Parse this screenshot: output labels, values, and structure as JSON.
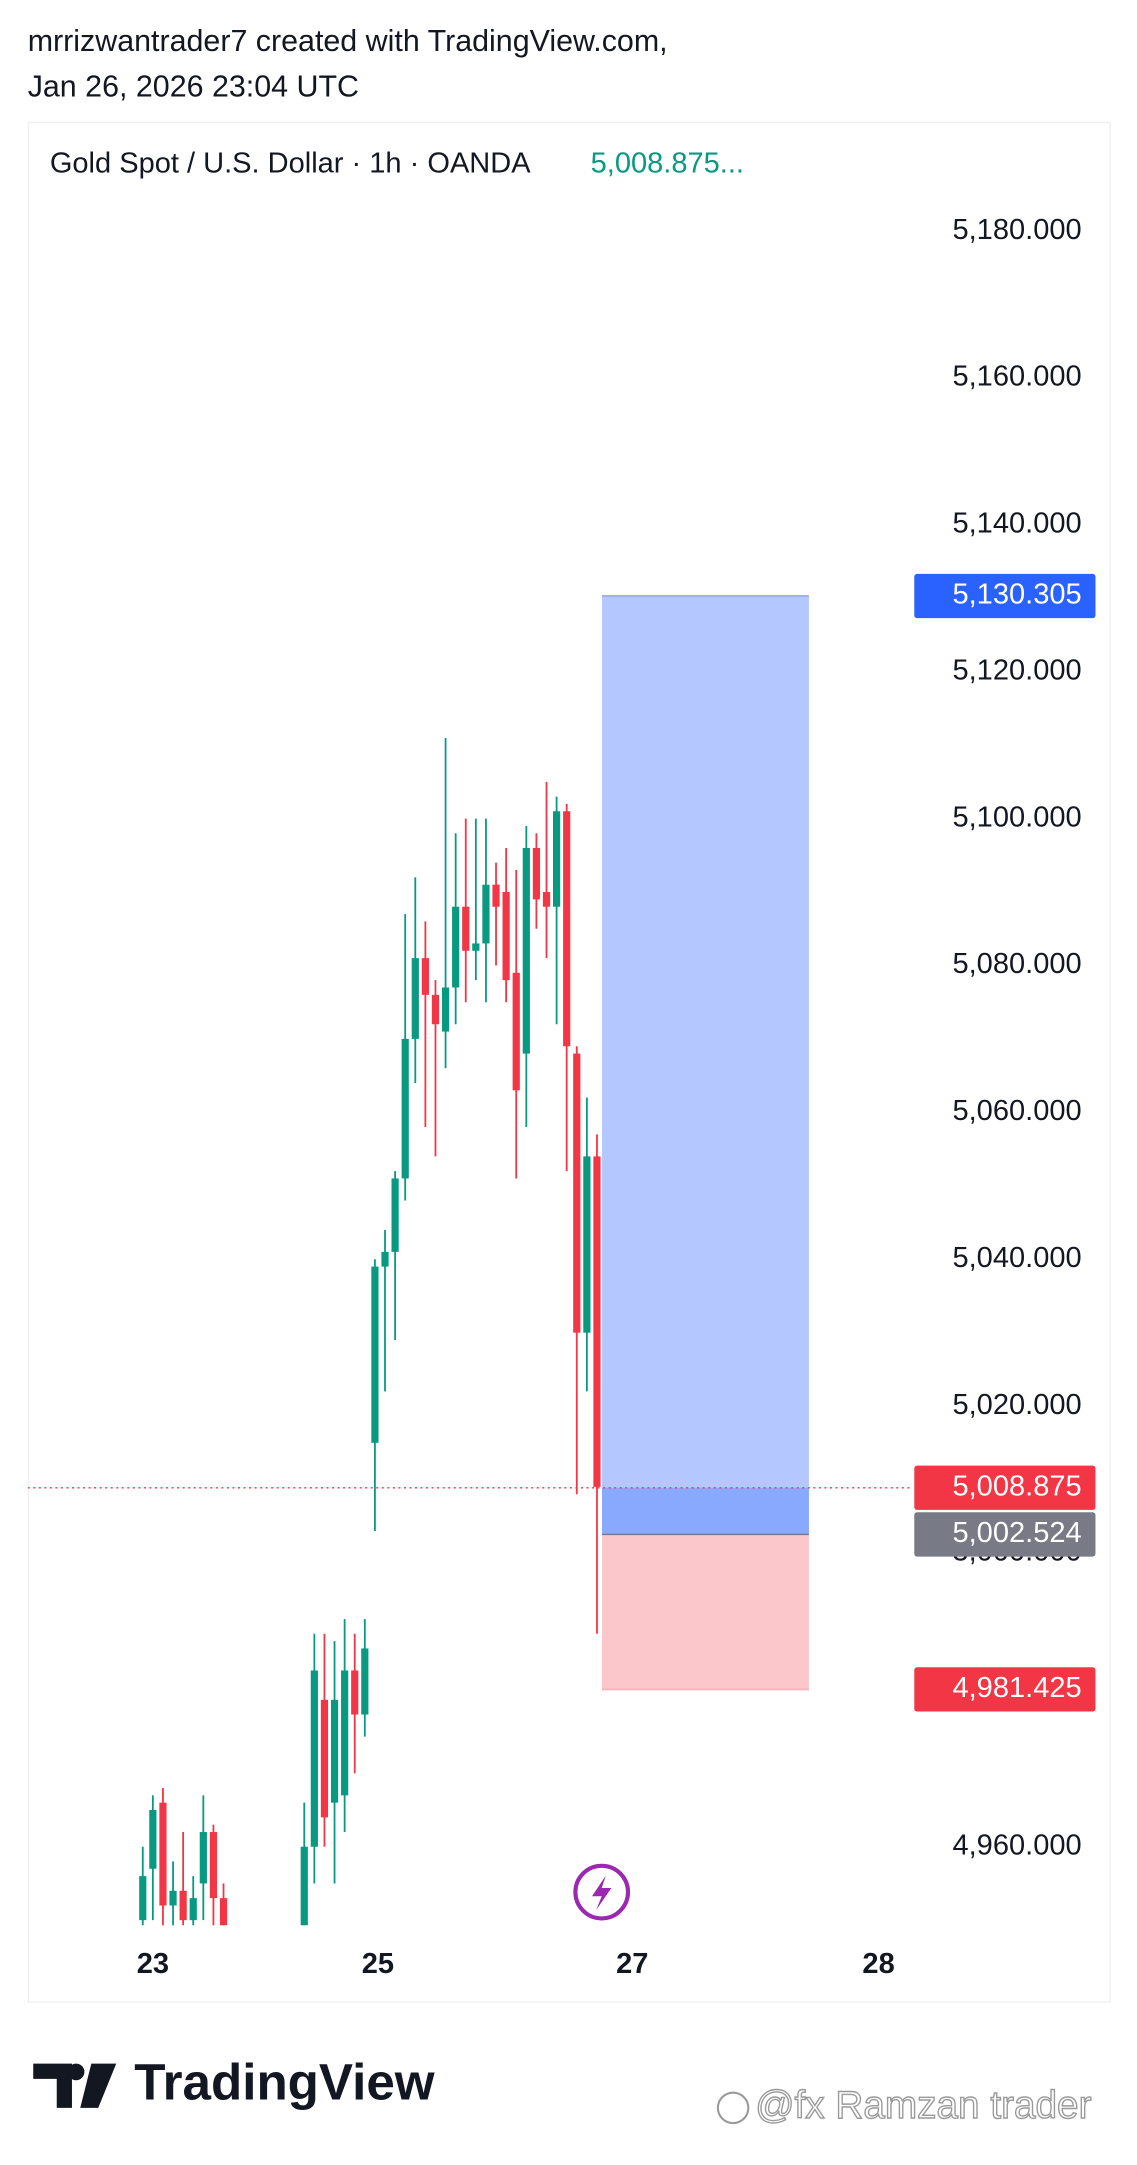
{
  "header": {
    "author_line": "mrrizwantrader7 created with TradingView.com,",
    "date_line": "Jan 26, 2026 23:04 UTC"
  },
  "chart_data": {
    "type": "candlestick",
    "title": "Gold Spot / U.S. Dollar · 1h · OANDA",
    "last_price_text": "5,008.875...",
    "up_color": "#089981",
    "down_color": "#f23645",
    "x": [
      0,
      1,
      2,
      3,
      4,
      5,
      6,
      7,
      8,
      16,
      17,
      18,
      19,
      20,
      21,
      22,
      23,
      24,
      25,
      26,
      27,
      28,
      29,
      30,
      31,
      32,
      33,
      34,
      35,
      36,
      37,
      38,
      39,
      40,
      41,
      42,
      43,
      44,
      45
    ],
    "open": [
      4950,
      4957,
      4966,
      4952,
      4954,
      4950,
      4955,
      4962,
      4953,
      4945,
      4960,
      4980,
      4966,
      4967,
      4984,
      4978,
      5015,
      5039,
      5041,
      5051,
      5070,
      5081,
      5076,
      5071,
      5077,
      5088,
      5082,
      5083,
      5091,
      5090,
      5079,
      5068,
      5096,
      5090,
      5088,
      5101,
      5068,
      5030,
      5054
    ],
    "high": [
      4960,
      4967,
      4968,
      4958,
      4962,
      4956,
      4967,
      4963,
      4955,
      4966,
      4989,
      4989,
      4988,
      4991,
      4989,
      4991,
      5040,
      5044,
      5052,
      5087,
      5092,
      5086,
      5078,
      5111,
      5098,
      5100,
      5100,
      5100,
      5094,
      5096,
      5093,
      5099,
      5098,
      5105,
      5103,
      5102,
      5069,
      5062,
      5057
    ],
    "low": [
      4945,
      4950,
      4948,
      4945,
      4948,
      4944,
      4950,
      4948,
      4940,
      4940,
      4955,
      4960,
      4955,
      4962,
      4970,
      4975,
      5003,
      5022,
      5029,
      5048,
      5064,
      5058,
      5054,
      5066,
      5072,
      5075,
      5078,
      5075,
      5080,
      5075,
      5051,
      5058,
      5085,
      5081,
      5072,
      5052,
      5008,
      5022,
      4989
    ],
    "close": [
      4956,
      4965,
      4952,
      4954,
      4950,
      4953,
      4962,
      4953,
      4944,
      4960,
      4984,
      4964,
      4980,
      4984,
      4978,
      4987,
      5039,
      5041,
      5051,
      5070,
      5081,
      5076,
      5072,
      5077,
      5088,
      5082,
      5083,
      5091,
      5088,
      5078,
      5063,
      5096,
      5089,
      5088,
      5101,
      5069,
      5030,
      5054,
      5009
    ],
    "xlim": [
      -11.4,
      76.3
    ],
    "xticks": [
      {
        "value": 1,
        "label": "23"
      },
      {
        "value": 23.3,
        "label": "25"
      },
      {
        "value": 48.5,
        "label": "27"
      },
      {
        "value": 72.9,
        "label": "28"
      }
    ],
    "ylim": [
      4949.3,
      5185.1
    ],
    "yticks": [
      {
        "value": 4960,
        "label": "4,960.000"
      },
      {
        "value": 5000,
        "label": "5,000.000"
      },
      {
        "value": 5020,
        "label": "5,020.000"
      },
      {
        "value": 5040,
        "label": "5,040.000"
      },
      {
        "value": 5060,
        "label": "5,060.000"
      },
      {
        "value": 5080,
        "label": "5,080.000"
      },
      {
        "value": 5100,
        "label": "5,100.000"
      },
      {
        "value": 5120,
        "label": "5,120.000"
      },
      {
        "value": 5140,
        "label": "5,140.000"
      },
      {
        "value": 5160,
        "label": "5,160.000"
      },
      {
        "value": 5180,
        "label": "5,180.000"
      }
    ],
    "current_price": {
      "value": 5008.875,
      "label": "5,008.875",
      "color": "#f23645"
    },
    "position": {
      "x": [
        45.5,
        66
      ],
      "target": {
        "value": 5130.305,
        "label": "5,130.305",
        "color": "#2962ff"
      },
      "entry": {
        "value": 5002.524,
        "label": "5,002.524",
        "color": "#787b86"
      },
      "stop": {
        "value": 4981.425,
        "label": "4,981.425",
        "color": "#f23645"
      }
    }
  },
  "footer": {
    "logo": "TradingView",
    "watermark": "@fx Ramzan trader"
  }
}
